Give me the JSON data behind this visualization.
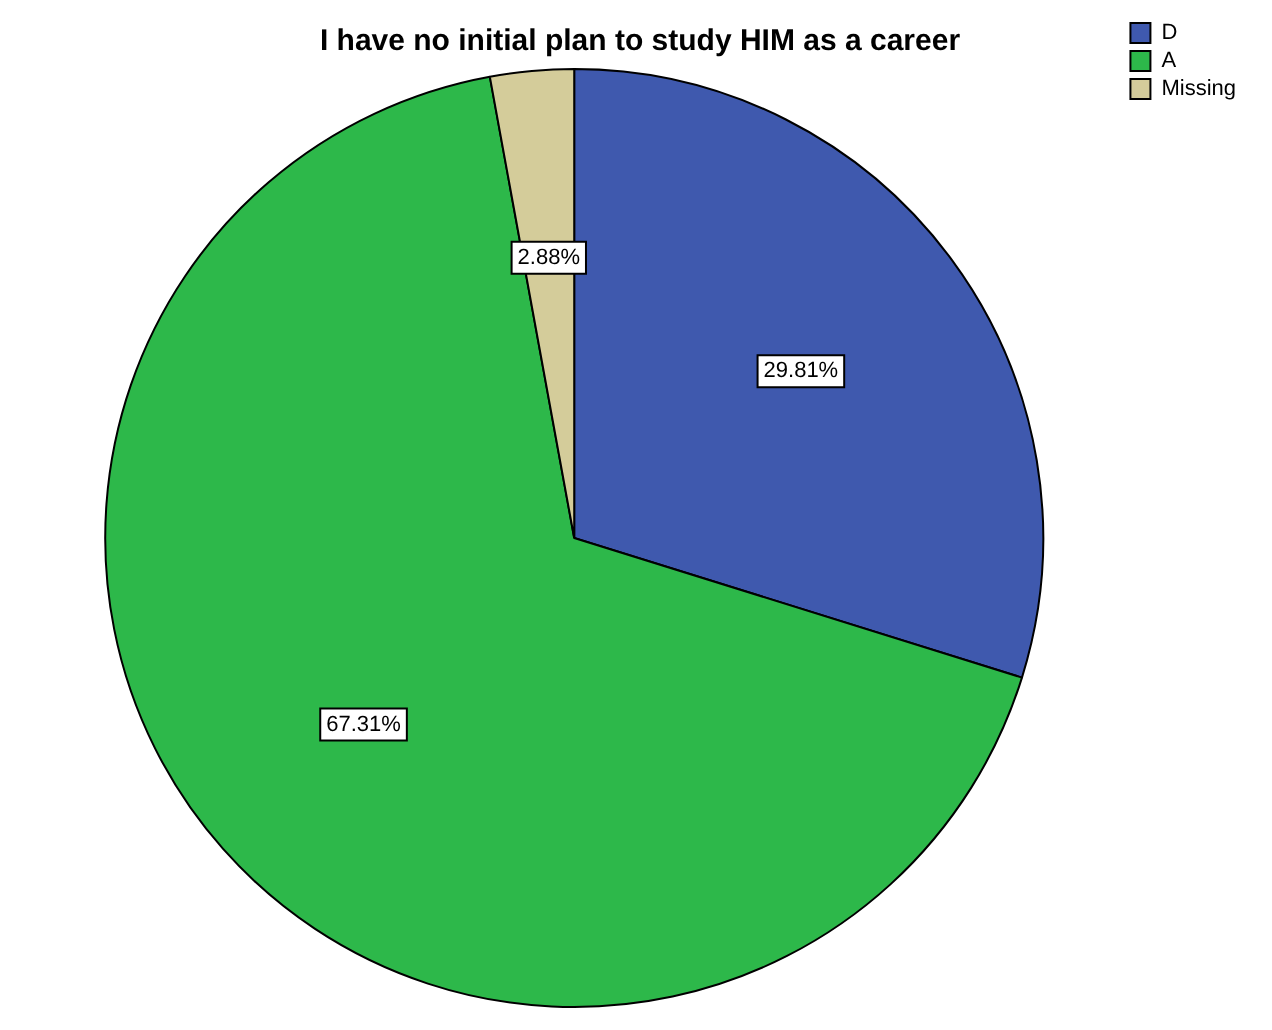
{
  "chart_data": {
    "type": "pie",
    "title": "I have no initial plan to study HIM as a career",
    "categories": [
      "D",
      "A",
      "Missing"
    ],
    "values": [
      29.81,
      67.31,
      2.88
    ],
    "colors": [
      "#3f59ae",
      "#2db84a",
      "#d4cc9a"
    ],
    "value_labels": [
      "29.81%",
      "67.31%",
      "2.88%"
    ],
    "legend": "top right"
  }
}
